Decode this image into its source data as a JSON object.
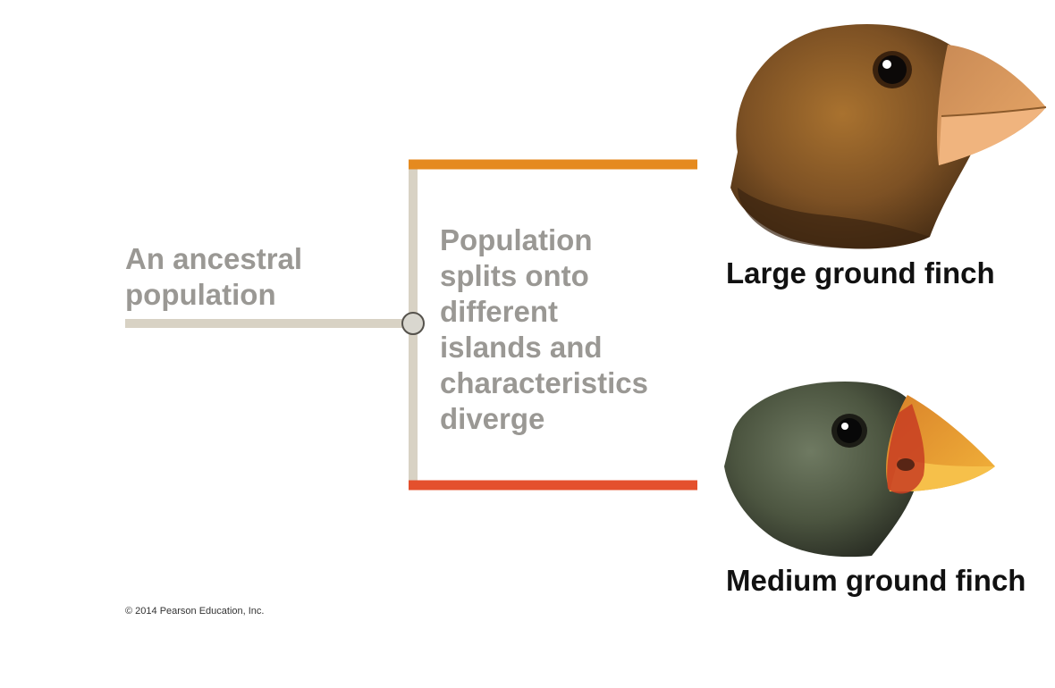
{
  "ancestral_label": [
    "An ancestral",
    "population"
  ],
  "split_label": [
    "Population",
    "splits onto",
    "different",
    "islands and",
    "characteristics",
    "diverge"
  ],
  "finches": {
    "large": {
      "name": "Large ground finch",
      "branch_color": "#e58a1f"
    },
    "medium": {
      "name": "Medium ground finch",
      "branch_color": "#e4502d"
    }
  },
  "trunk_color": "#d8d2c4",
  "copyright": "© 2014 Pearson Education, Inc."
}
